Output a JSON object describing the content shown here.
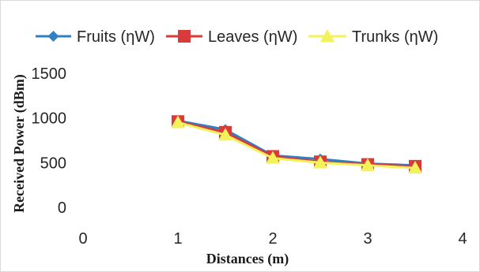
{
  "chart_data": {
    "type": "line",
    "xlabel": "Distances (m)",
    "ylabel": "Received Power (dBm)",
    "xlim": [
      0,
      4
    ],
    "ylim": [
      0,
      1500
    ],
    "x_ticks": [
      "0",
      "1",
      "2",
      "3",
      "4"
    ],
    "y_ticks": [
      "0",
      "500",
      "1000",
      "1500"
    ],
    "x": [
      1,
      1.5,
      2,
      2.5,
      3,
      3.5
    ],
    "series": [
      {
        "name": "Fruits (ηW)",
        "values": [
          970,
          870,
          580,
          540,
          490,
          470
        ],
        "color": "#2f80c4",
        "marker": "diamond"
      },
      {
        "name": "Leaves (ηW)",
        "values": [
          960,
          840,
          570,
          510,
          480,
          460
        ],
        "color": "#d93a3a",
        "marker": "square"
      },
      {
        "name": "Trunks (ηW)",
        "values": [
          950,
          810,
          550,
          500,
          470,
          440
        ],
        "color": "#f2f25a",
        "marker": "triangle"
      }
    ],
    "grid": false,
    "legend_position": "top"
  }
}
